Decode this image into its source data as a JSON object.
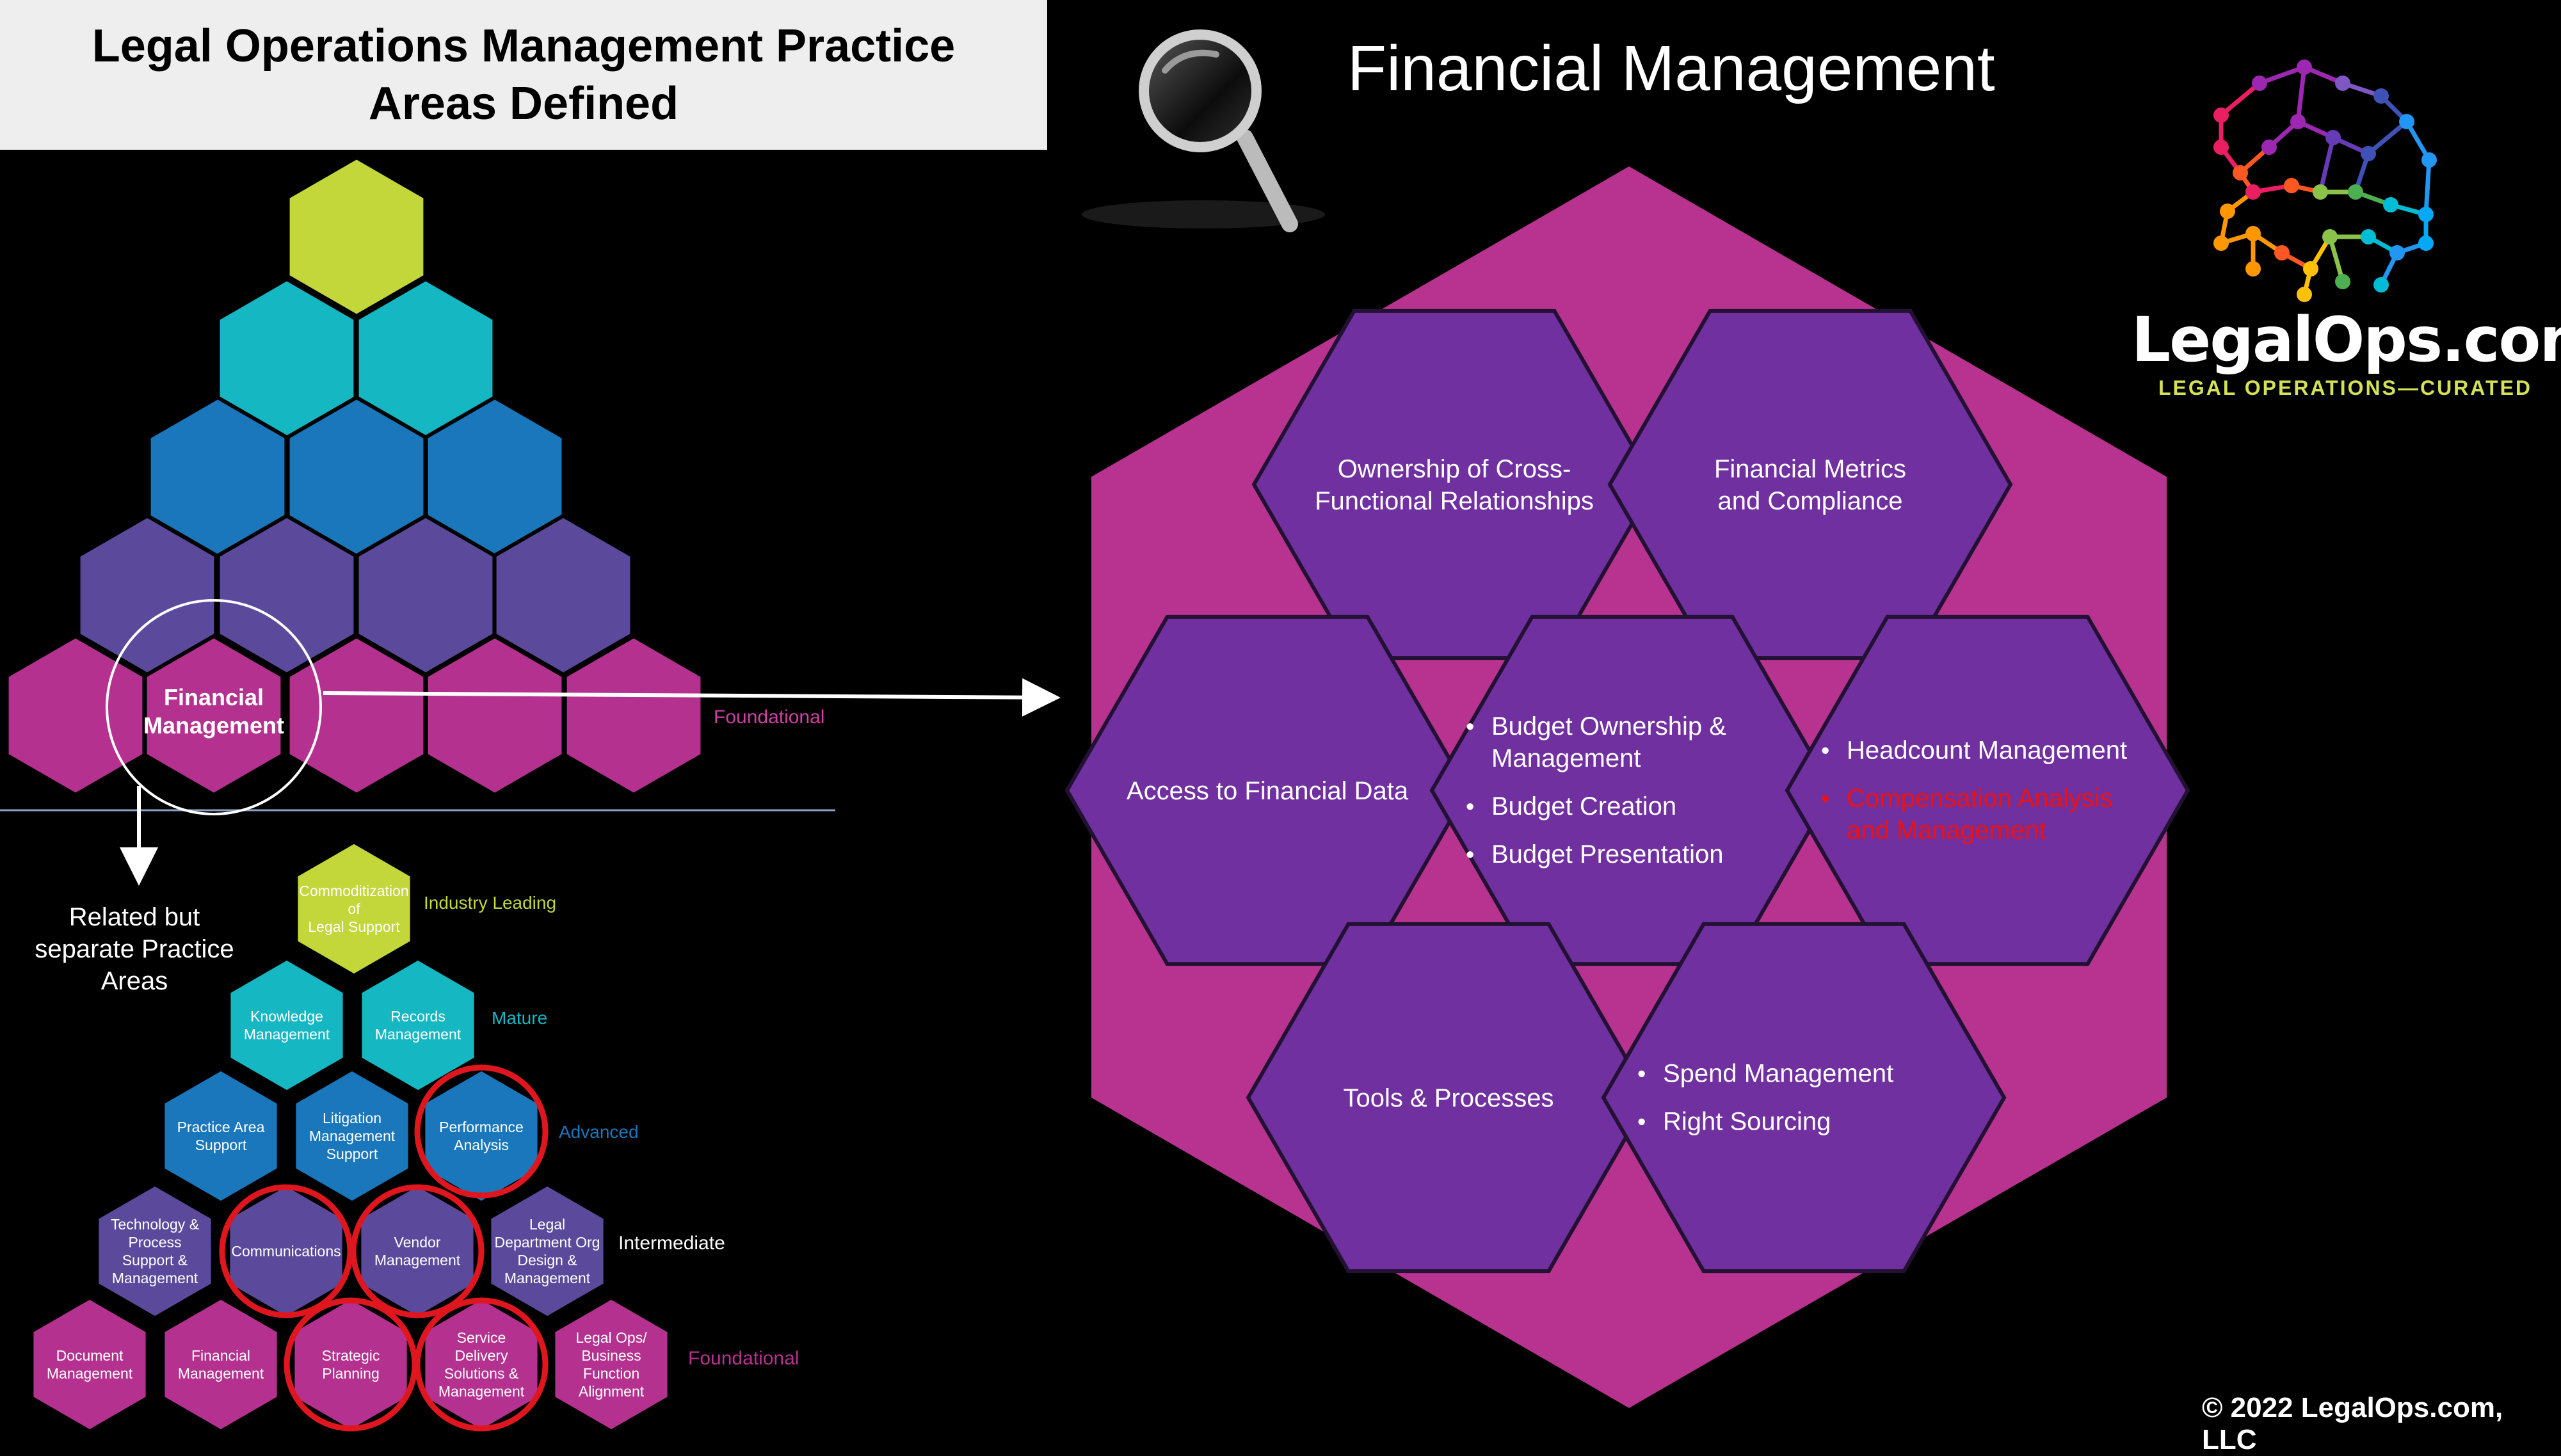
{
  "header": {
    "title_line1": "Legal Operations Management Practice",
    "title_line2": "Areas Defined",
    "section_title": "Financial Management"
  },
  "logo": {
    "name": "LegalOps.com",
    "tagline": "LEGAL OPERATIONS—CURATED",
    "icon": "network-hexagon-logo"
  },
  "search_icon": "magnifier-icon",
  "top_pyramid": {
    "highlight_line1": "Financial",
    "highlight_line2": "Management",
    "level_label": "Foundational"
  },
  "related_note": {
    "line1": "Related but",
    "line2": "separate Practice",
    "line3": "Areas"
  },
  "small_pyramid": {
    "levels": {
      "industry_leading": "Industry Leading",
      "mature": "Mature",
      "advanced": "Advanced",
      "intermediate": "Intermediate",
      "foundational": "Foundational"
    },
    "row1": [
      {
        "lines": [
          "Commoditization",
          "of",
          "Legal Support"
        ]
      }
    ],
    "row2": [
      {
        "lines": [
          "Knowledge",
          "Management"
        ]
      },
      {
        "lines": [
          "Records",
          "Management"
        ]
      }
    ],
    "row3": [
      {
        "lines": [
          "Practice Area",
          "Support"
        ]
      },
      {
        "lines": [
          "Litigation",
          "Management",
          "Support"
        ]
      },
      {
        "lines": [
          "Performance",
          "Analysis"
        ]
      }
    ],
    "row4": [
      {
        "lines": [
          "Technology &",
          "Process",
          "Support &",
          "Management"
        ]
      },
      {
        "lines": [
          "Communications"
        ]
      },
      {
        "lines": [
          "Vendor",
          "Management"
        ]
      },
      {
        "lines": [
          "Legal",
          "Department Org",
          "Design &",
          "Management"
        ]
      }
    ],
    "row5": [
      {
        "lines": [
          "Document",
          "Management"
        ]
      },
      {
        "lines": [
          "Financial",
          "Management"
        ]
      },
      {
        "lines": [
          "Strategic",
          "Planning"
        ]
      },
      {
        "lines": [
          "Service",
          "Delivery",
          "Solutions &",
          "Management"
        ]
      },
      {
        "lines": [
          "Legal Ops/",
          "Business",
          "Function",
          "Alignment"
        ]
      }
    ]
  },
  "detail": {
    "ownership": {
      "lines": [
        "Ownership of Cross-",
        "Functional Relationships"
      ]
    },
    "metrics": {
      "lines": [
        "Financial Metrics",
        "and Compliance"
      ]
    },
    "access": {
      "lines": [
        "Access to Financial Data"
      ]
    },
    "budget": {
      "bullets": [
        [
          "Budget Ownership &",
          "Management"
        ],
        [
          "Budget Creation"
        ],
        [
          "Budget Presentation"
        ]
      ]
    },
    "headcount": {
      "bullets": [
        [
          "Headcount Management"
        ]
      ],
      "red_bullets": [
        [
          "Compensation Analysis",
          "and  Management"
        ]
      ]
    },
    "tools": {
      "lines": [
        "Tools & Processes"
      ]
    },
    "spend": {
      "bullets": [
        [
          "Spend Management"
        ],
        [
          "Right Sourcing"
        ]
      ]
    }
  },
  "copyright": "© 2022 LegalOps.com, LLC",
  "colors": {
    "lime": "#c3d63a",
    "teal": "#15b7c3",
    "blue": "#1a77bb",
    "purple": "#5b4a9b",
    "magenta": "#b5318f",
    "detail_outer": "#b8338f",
    "detail_inner": "#7030a0",
    "circle_red": "#e0161e",
    "text_red": "#ee1111"
  }
}
